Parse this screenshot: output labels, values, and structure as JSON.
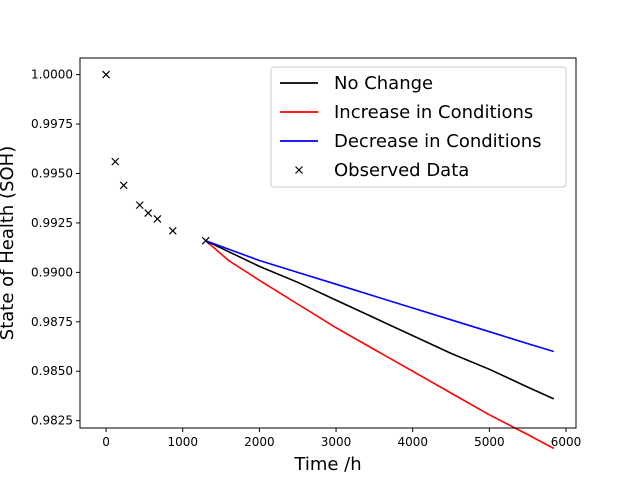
{
  "chart_data": {
    "type": "line",
    "title": "",
    "xlabel": "Time /h",
    "ylabel": "State of Health (SOH)",
    "xlim": [
      -340,
      6130
    ],
    "ylim": [
      0.98213,
      1.00084
    ],
    "xticks": [
      0,
      1000,
      2000,
      3000,
      4000,
      5000,
      6000
    ],
    "xtick_labels": [
      "0",
      "1000",
      "2000",
      "3000",
      "4000",
      "5000",
      "6000"
    ],
    "yticks": [
      0.9825,
      0.985,
      0.9875,
      0.99,
      0.9925,
      0.995,
      0.9975,
      1.0
    ],
    "ytick_labels": [
      "0.9825",
      "0.9850",
      "0.9875",
      "0.9900",
      "0.9925",
      "0.9950",
      "0.9975",
      "1.0000"
    ],
    "grid": false,
    "legend_position": "top-right",
    "series": [
      {
        "name": "No Change",
        "kind": "line",
        "color": "#000000",
        "x": [
          1300,
          2000,
          2500,
          3000,
          3500,
          4000,
          4500,
          5000,
          5500,
          5840
        ],
        "y": [
          0.9916,
          0.9903,
          0.9895,
          0.9886,
          0.9877,
          0.9868,
          0.9859,
          0.9851,
          0.9842,
          0.9836
        ]
      },
      {
        "name": "Increase in Conditions",
        "kind": "line",
        "color": "#ff0000",
        "x": [
          1300,
          1600,
          2000,
          2500,
          3000,
          3500,
          4000,
          4500,
          5000,
          5500,
          5840
        ],
        "y": [
          0.9916,
          0.9906,
          0.9896,
          0.9884,
          0.9872,
          0.9861,
          0.985,
          0.9839,
          0.9828,
          0.9818,
          0.9811
        ]
      },
      {
        "name": "Decrease in Conditions",
        "kind": "line",
        "color": "#0000ff",
        "x": [
          1300,
          2000,
          2500,
          3000,
          3500,
          4000,
          4500,
          5000,
          5500,
          5840
        ],
        "y": [
          0.9916,
          0.9906,
          0.99,
          0.9894,
          0.9888,
          0.9882,
          0.9876,
          0.987,
          0.9864,
          0.986
        ]
      },
      {
        "name": "Observed Data",
        "kind": "marker",
        "marker": "x",
        "color": "#000000",
        "x": [
          0,
          120,
          230,
          440,
          550,
          670,
          870,
          1300
        ],
        "y": [
          1.0,
          0.9956,
          0.9944,
          0.9934,
          0.993,
          0.9927,
          0.9921,
          0.9916
        ]
      }
    ]
  }
}
